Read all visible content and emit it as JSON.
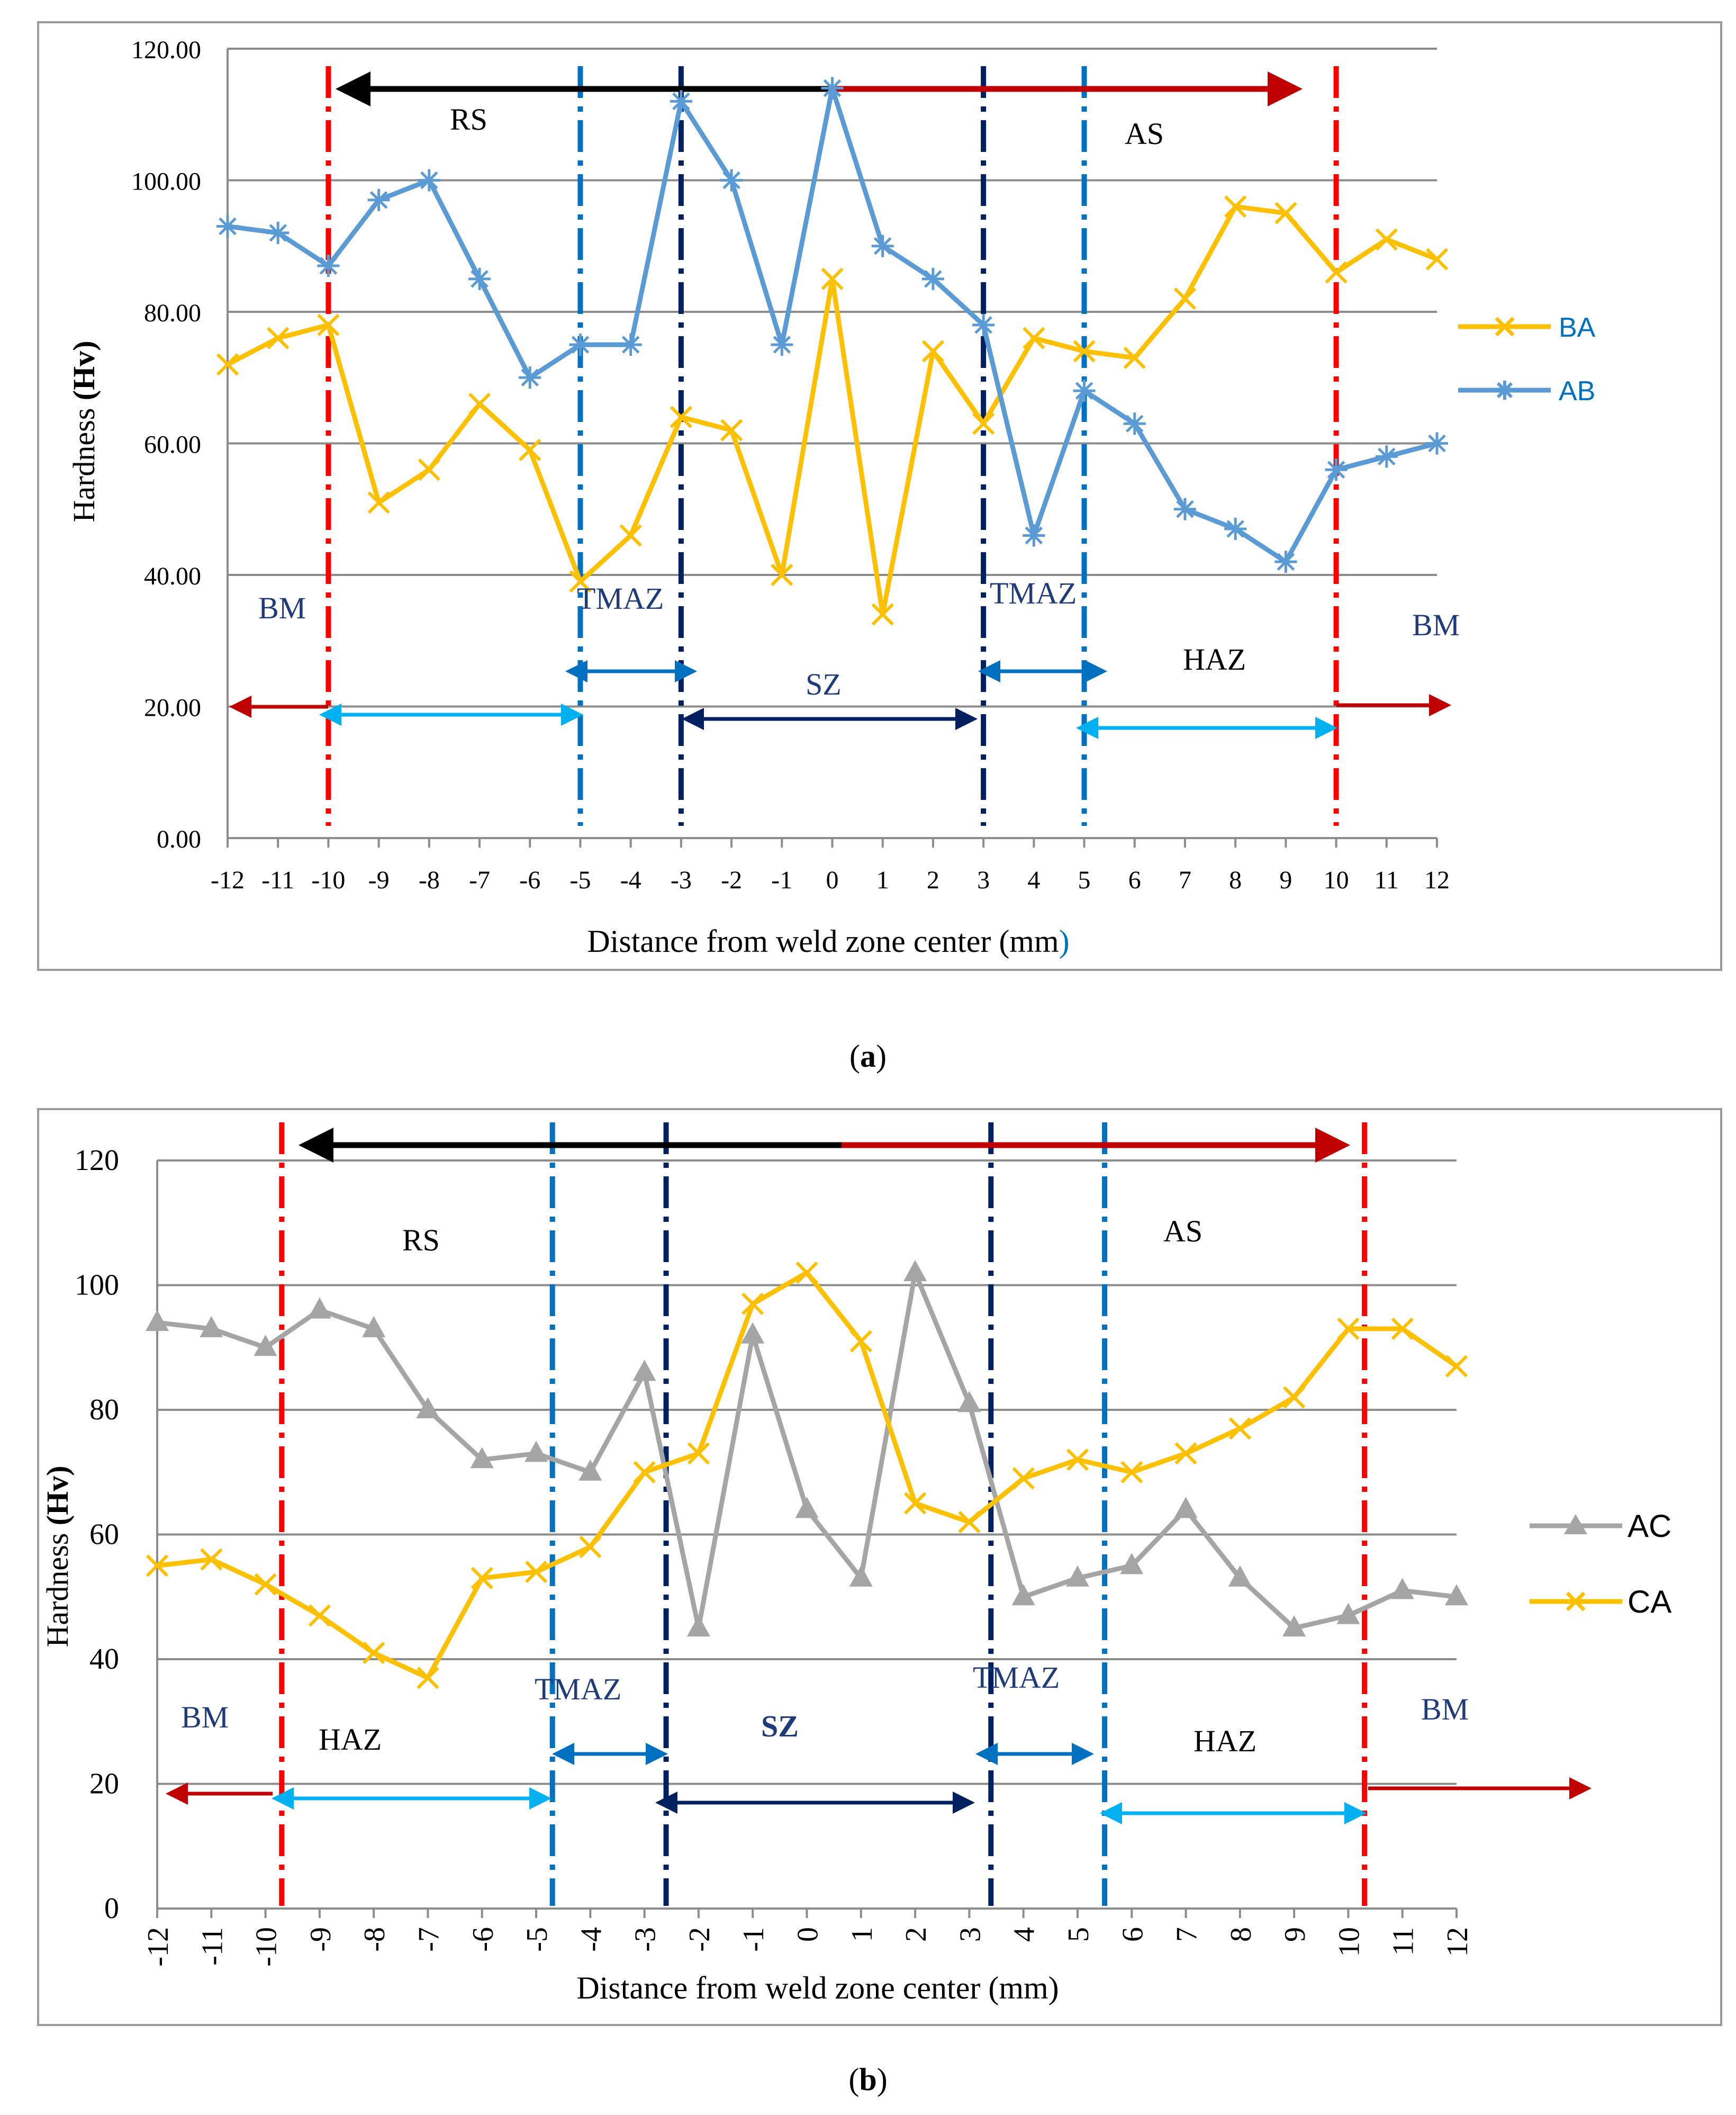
{
  "panels": [
    {
      "caption_letter": "a",
      "chart_data": {
        "type": "line",
        "ylabel_prefix": "Hardness ",
        "ylabel_bold": "(Hv)",
        "xlabel": "Distance from weld zone center (mm",
        "xlabel_close": ")",
        "x": [
          -12,
          -11,
          -10,
          -9,
          -8,
          -7,
          -6,
          -5,
          -4,
          -3,
          -2,
          -1,
          0,
          1,
          2,
          3,
          4,
          5,
          6,
          7,
          8,
          9,
          10,
          11,
          12
        ],
        "ylim": [
          0,
          120
        ],
        "yticks": [
          0,
          20,
          40,
          60,
          80,
          100,
          120
        ],
        "ytick_labels": [
          "0.00",
          "20.00",
          "40.00",
          "60.00",
          "80.00",
          "100.00",
          "120.00"
        ],
        "grid": true,
        "legend_position": "right",
        "series": [
          {
            "name": "BA",
            "color": "#FFC000",
            "marker": "x",
            "values": [
              72,
              76,
              78,
              51,
              56,
              66,
              59,
              39,
              46,
              64,
              62,
              40,
              85,
              34,
              74,
              63,
              76,
              74,
              73,
              82,
              96,
              95,
              86,
              91,
              88
            ]
          },
          {
            "name": "AB",
            "color": "#5B9BD5",
            "marker": "star",
            "values": [
              93,
              92,
              87,
              97,
              100,
              85,
              70,
              75,
              75,
              112,
              100,
              75,
              114,
              90,
              85,
              78,
              46,
              68,
              63,
              50,
              47,
              42,
              56,
              58,
              60
            ]
          }
        ],
        "zone_lines": [
          {
            "x": -10,
            "color": "#FF0000"
          },
          {
            "x": -5,
            "color": "#0070C0"
          },
          {
            "x": -3,
            "color": "#002060"
          },
          {
            "x": 3,
            "color": "#002060"
          },
          {
            "x": 5,
            "color": "#0070C0"
          },
          {
            "x": 10,
            "color": "#FF0000"
          }
        ],
        "annotations": {
          "RS": "RS",
          "AS": "AS",
          "BM_left": "BM",
          "BM_right": "BM",
          "TMAZ_left": "TMAZ",
          "TMAZ_right": "TMAZ",
          "SZ": "SZ",
          "HAZ_right": "HAZ"
        }
      }
    },
    {
      "caption_letter": "b",
      "chart_data": {
        "type": "line",
        "ylabel_prefix": "Hardness ",
        "ylabel_bold": "(Hv)",
        "xlabel": "Distance from weld zone center (mm)",
        "x": [
          -12,
          -11,
          -10,
          -9,
          -8,
          -7,
          -6,
          -5,
          -4,
          -3,
          -2,
          -1,
          0,
          1,
          2,
          3,
          4,
          5,
          6,
          7,
          8,
          9,
          10,
          11,
          12
        ],
        "ylim": [
          0,
          120
        ],
        "yticks": [
          0,
          20,
          40,
          60,
          80,
          100,
          120
        ],
        "ytick_labels": [
          "0",
          "20",
          "40",
          "60",
          "80",
          "100",
          "120"
        ],
        "grid": true,
        "legend_position": "right",
        "series": [
          {
            "name": "AC",
            "color": "#A5A5A5",
            "marker": "triangle",
            "values": [
              94,
              93,
              90,
              96,
              93,
              80,
              72,
              73,
              70,
              86,
              45,
              92,
              64,
              53,
              102,
              81,
              50,
              53,
              55,
              64,
              53,
              45,
              47,
              51,
              50
            ]
          },
          {
            "name": "CA",
            "color": "#FFC000",
            "marker": "x",
            "values": [
              55,
              56,
              52,
              47,
              41,
              37,
              53,
              54,
              58,
              70,
              73,
              97,
              102,
              91,
              65,
              62,
              69,
              72,
              70,
              73,
              77,
              82,
              93,
              93,
              87
            ]
          }
        ],
        "zone_lines": [
          {
            "x": -9.7,
            "color": "#FF0000"
          },
          {
            "x": -4.7,
            "color": "#0070C0"
          },
          {
            "x": -2.6,
            "color": "#002060"
          },
          {
            "x": 3.4,
            "color": "#002060"
          },
          {
            "x": 5.5,
            "color": "#0070C0"
          },
          {
            "x": 10.3,
            "color": "#FF0000"
          }
        ],
        "annotations": {
          "RS": "RS",
          "AS": "AS",
          "BM_left": "BM",
          "BM_right": "BM",
          "HAZ_left": "HAZ",
          "HAZ_right": "HAZ",
          "TMAZ_left": "TMAZ",
          "TMAZ_right": "TMAZ",
          "SZ": "SZ"
        }
      }
    }
  ]
}
